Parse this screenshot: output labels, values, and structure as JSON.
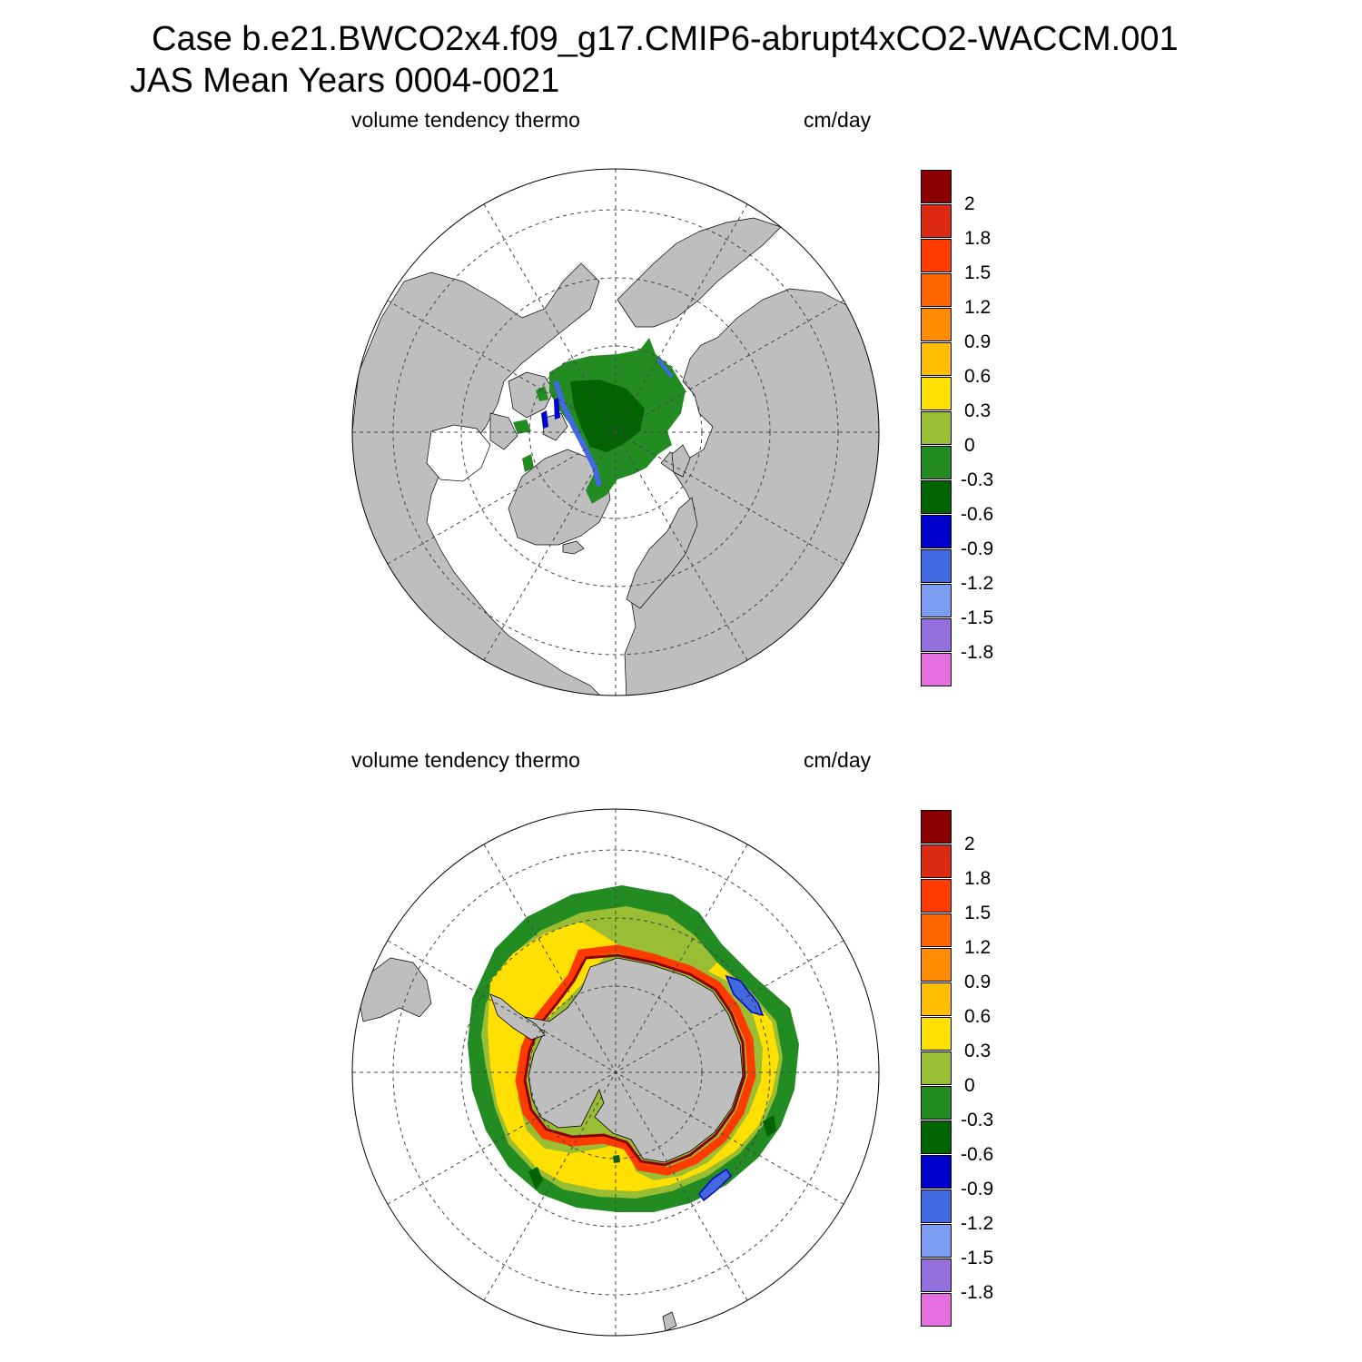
{
  "title": {
    "line1": "Case b.e21.BWCO2x4.f09_g17.CMIP6-abrupt4xCO2-WACCM.001",
    "line2": "JAS Mean   Years 0004-0021"
  },
  "panels": [
    {
      "id": "north",
      "variable_label": "volume tendency thermo",
      "units_label": "cm/day",
      "hemisphere": "NH polar stereographic",
      "colorbar": {
        "colors": [
          "#8b0000",
          "#dd2a13",
          "#ff3b00",
          "#ff6600",
          "#ff8c00",
          "#ffbf00",
          "#ffe000",
          "#99bd33",
          "#228b22",
          "#006400",
          "#0000cd",
          "#4169e1",
          "#7b9ef0",
          "#9370db",
          "#e56ee0"
        ],
        "labels": [
          "2",
          "1.8",
          "1.5",
          "1.2",
          "0.9",
          "0.6",
          "0.3",
          "0",
          "-0.3",
          "-0.6",
          "-0.9",
          "-1.2",
          "-1.5",
          "-1.8"
        ]
      }
    },
    {
      "id": "south",
      "variable_label": "volume tendency thermo",
      "units_label": "cm/day",
      "hemisphere": "SH polar stereographic",
      "colorbar": {
        "colors": [
          "#8b0000",
          "#dd2a13",
          "#ff3b00",
          "#ff6600",
          "#ff8c00",
          "#ffbf00",
          "#ffe000",
          "#99bd33",
          "#228b22",
          "#006400",
          "#0000cd",
          "#4169e1",
          "#7b9ef0",
          "#9370db",
          "#e56ee0"
        ],
        "labels": [
          "2",
          "1.8",
          "1.5",
          "1.2",
          "0.9",
          "0.6",
          "0.3",
          "0",
          "-0.3",
          "-0.6",
          "-0.9",
          "-1.2",
          "-1.5",
          "-1.8"
        ]
      }
    }
  ],
  "colors": {
    "land": "#bebebe",
    "ocean": "#ffffff",
    "grid": "#444444"
  }
}
